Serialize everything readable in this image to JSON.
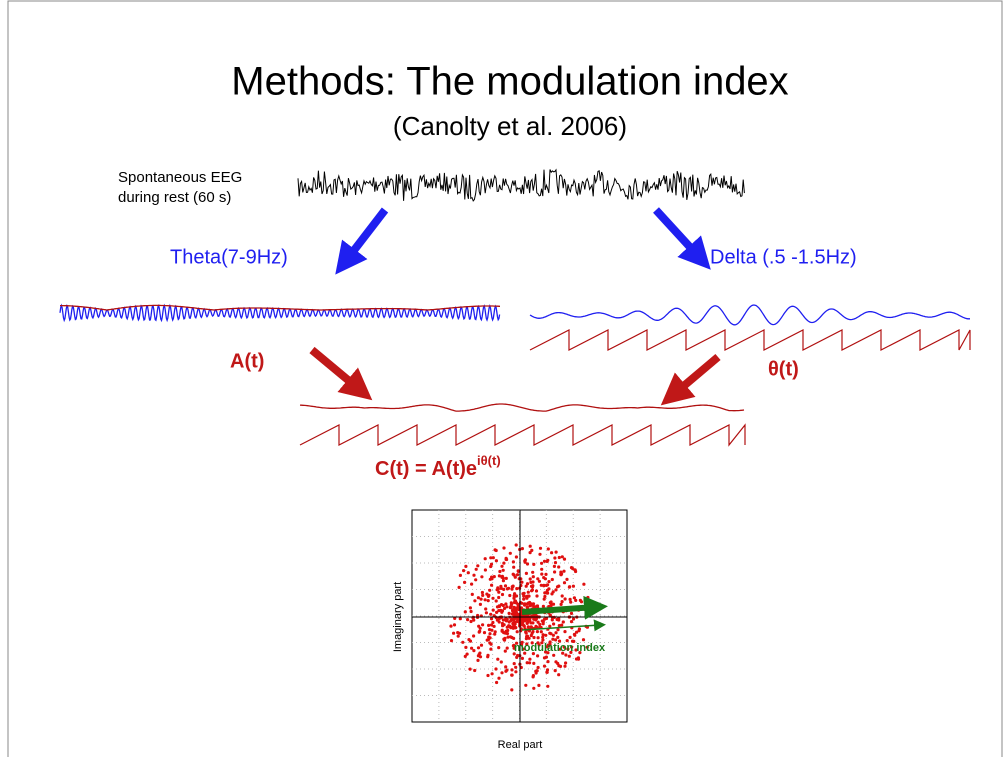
{
  "header": {
    "title": "Methods: The modulation index",
    "subtitle": "(Canolty et al. 2006)"
  },
  "eeg": {
    "label_line1": "Spontaneous EEG",
    "label_line2": "during rest (60 s)"
  },
  "theta": {
    "label": "Theta(7-9Hz)",
    "amplitude_label": "A(t)"
  },
  "delta": {
    "label": "Delta (.5 -1.5Hz)",
    "phase_label": "θ(t)"
  },
  "composite": {
    "formula": "C(t) = A(t)e",
    "exponent": "iθ(t)"
  },
  "plot": {
    "y_label": "Imaginary part",
    "x_label": "Real part",
    "vector_label": "modulation index"
  }
}
